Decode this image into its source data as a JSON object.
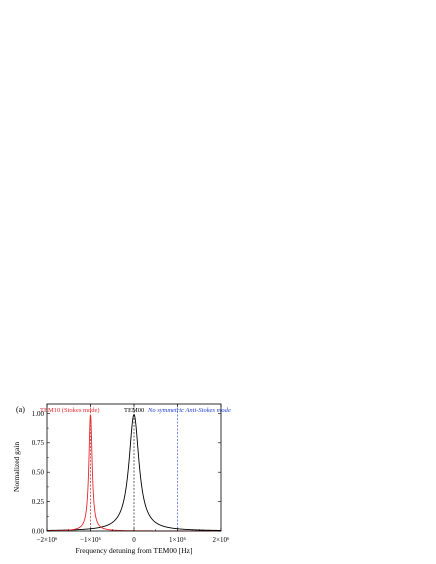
{
  "chart_data": {
    "type": "line",
    "panel_label": "(a)",
    "xlabel": "Frequency detuning from TEM00  [Hz]",
    "ylabel": "Normalized gain",
    "xlim": [
      -2000000,
      2000000
    ],
    "ylim": [
      0,
      1.08
    ],
    "x_ticks": [
      -2000000,
      -1000000,
      0,
      1000000,
      2000000
    ],
    "x_tick_labels": [
      "−2×10⁶",
      "−1×10⁶",
      "0",
      "1×10⁶",
      "2×10⁶"
    ],
    "y_ticks": [
      0,
      0.25,
      0.5,
      0.75,
      1.0
    ],
    "y_tick_labels": [
      "0.00",
      "0.25",
      "0.50",
      "0.75",
      "1.00"
    ],
    "grid": false,
    "series": [
      {
        "name": "TEM00",
        "color": "#000000",
        "shape": "lorentzian",
        "center": 0,
        "peak": 0.99,
        "half_width": 140000
      },
      {
        "name": "TEM10 (Stokes mode)",
        "color": "#e8262a",
        "shape": "lorentzian",
        "center": -1000000,
        "peak": 0.99,
        "half_width": 45000
      }
    ],
    "markers": [
      {
        "x": -1000000,
        "color": "#b00000",
        "style": "dashed"
      },
      {
        "x": 0,
        "color": "#000000",
        "style": "dashed"
      },
      {
        "x": 1000000,
        "color": "#1f3fd0",
        "style": "dashed"
      }
    ],
    "annotations": [
      {
        "text": "TEM10 (Stokes mode)",
        "color": "#e8262a",
        "near_x": -1000000,
        "italic": false
      },
      {
        "text": "TEM00",
        "color": "#000000",
        "near_x": 0,
        "italic": false
      },
      {
        "text": "No symmetric Anti-Stokes mode",
        "color": "#1f3fd0",
        "near_x": 1000000,
        "italic": true
      }
    ]
  }
}
